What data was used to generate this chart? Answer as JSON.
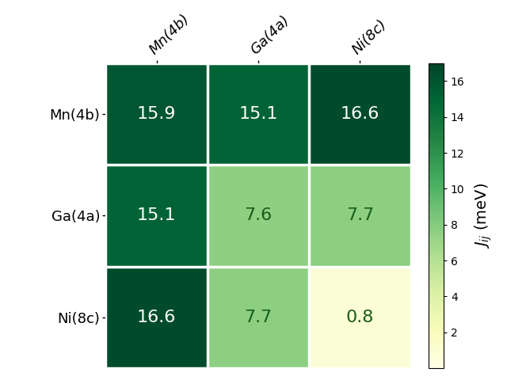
{
  "labels": [
    "Mn(4b)",
    "Ga(4a)",
    "Ni(8c)"
  ],
  "matrix": [
    [
      15.9,
      15.1,
      16.6
    ],
    [
      15.1,
      7.6,
      7.7
    ],
    [
      16.6,
      7.7,
      0.8
    ]
  ],
  "cmap": "YlGn",
  "vmin": 0,
  "vmax": 17,
  "colorbar_label": "$J_{ij}$ (meV)",
  "text_colors_threshold": 10.0,
  "cell_text_fontsize": 16,
  "xlabel_fontsize": 13,
  "ylabel_fontsize": 13,
  "colorbar_fontsize": 14,
  "colorbar_ticks": [
    2,
    4,
    6,
    8,
    10,
    12,
    14,
    16
  ],
  "white_linewidth": 2.5
}
